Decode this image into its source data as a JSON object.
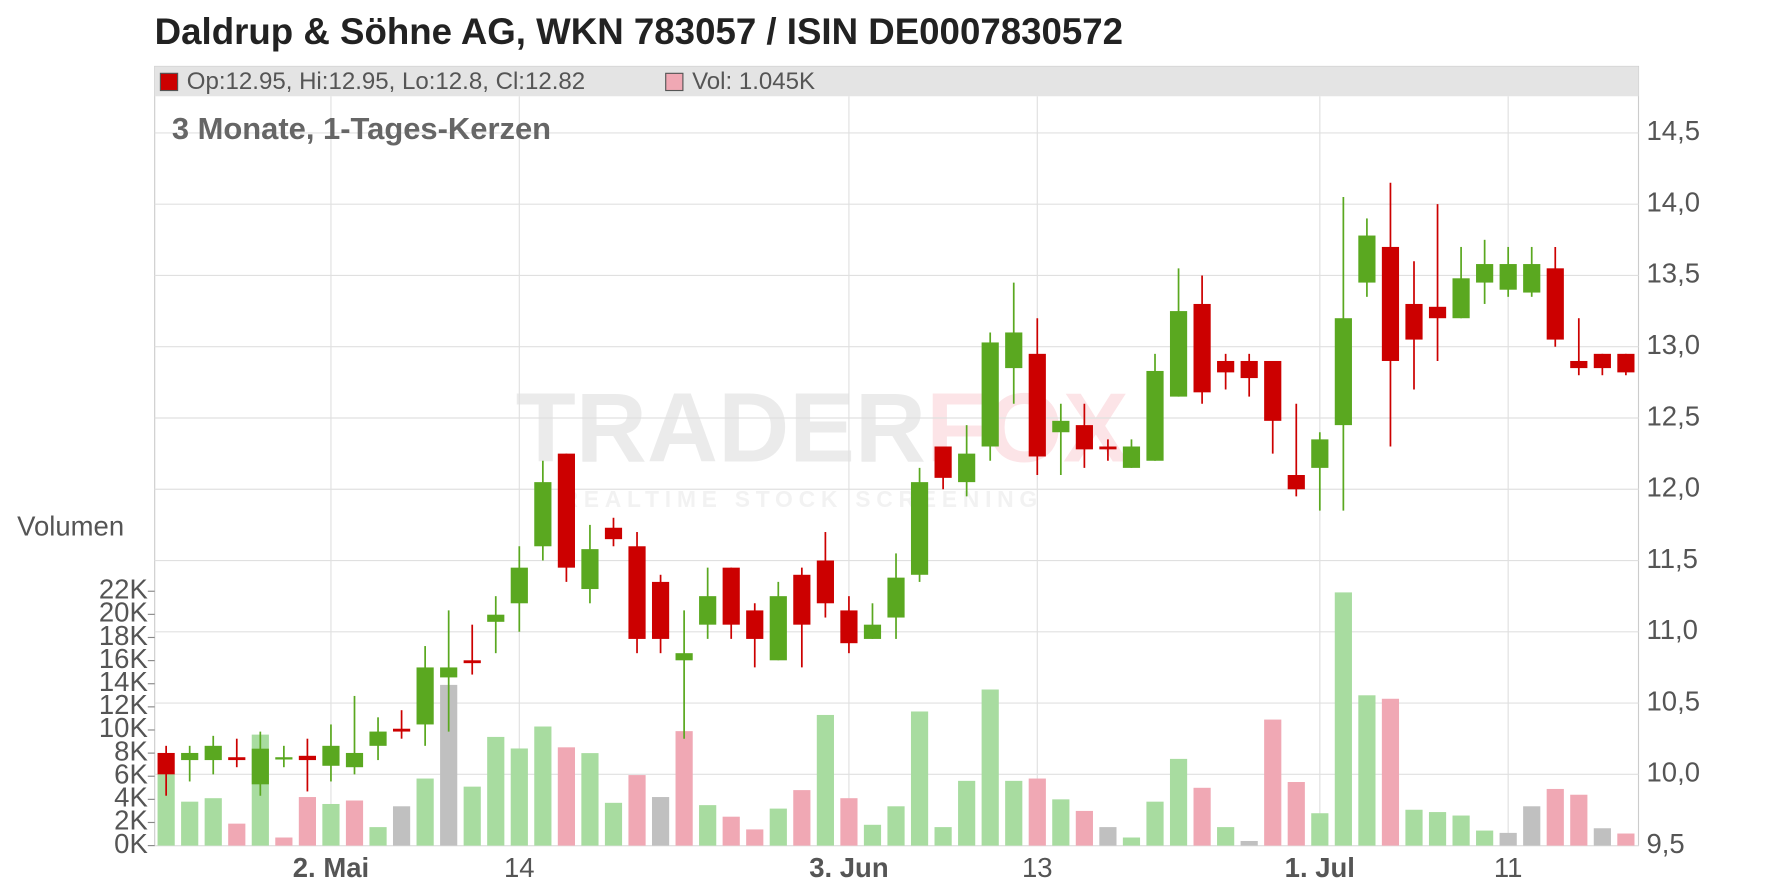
{
  "chart_data": {
    "type": "candlestick",
    "title": "Daldrup & Söhne AG, WKN 783057 / ISIN DE0007830572",
    "subtitle": "3 Monate, 1-Tages-Kerzen",
    "legend": {
      "price": "Op:12.95, Hi:12.95, Lo:12.8, Cl:12.82",
      "volume": "Vol: 1.045K"
    },
    "watermark": {
      "brand": [
        "TRADER",
        "FOX"
      ],
      "tagline": "REALTIME STOCK SCREENING"
    },
    "volume_label": "Volumen",
    "up_color": "#5aa820",
    "down_color": "#cc0000",
    "legend_price_color": "#cc0000",
    "legend_volume_color": "#f0a8b4",
    "grid": true,
    "categories": [
      null,
      null,
      null,
      null,
      null,
      null,
      null,
      "2. Mai",
      null,
      null,
      null,
      null,
      null,
      null,
      null,
      "14",
      null,
      null,
      null,
      null,
      null,
      null,
      null,
      null,
      null,
      null,
      null,
      null,
      null,
      "3. Jun",
      null,
      null,
      null,
      null,
      null,
      null,
      null,
      "13",
      null,
      null,
      null,
      null,
      null,
      null,
      null,
      null,
      null,
      null,
      null,
      "1. Jul",
      null,
      null,
      null,
      null,
      null,
      null,
      null,
      "11",
      null,
      null,
      null,
      null,
      null
    ],
    "open": [
      10.15,
      10.1,
      10.1,
      10.12,
      9.93,
      10.11,
      10.13,
      10.06,
      10.05,
      10.2,
      10.32,
      10.35,
      10.68,
      10.8,
      11.07,
      11.2,
      11.6,
      12.25,
      11.3,
      11.73,
      11.6,
      11.35,
      10.8,
      11.05,
      11.45,
      11.15,
      10.8,
      11.4,
      11.5,
      11.15,
      10.95,
      11.1,
      11.4,
      12.3,
      12.05,
      12.3,
      12.85,
      12.95,
      12.4,
      12.45,
      12.3,
      12.15,
      12.2,
      12.65,
      13.3,
      12.9,
      12.9,
      12.9,
      12.1,
      12.15,
      12.45,
      13.45,
      13.7,
      13.3,
      13.28,
      13.2,
      13.45,
      13.4,
      13.38,
      13.55,
      12.9,
      12.95,
      12.95
    ],
    "high": [
      10.2,
      10.2,
      10.27,
      10.25,
      10.3,
      10.2,
      10.25,
      10.35,
      10.55,
      10.4,
      10.45,
      10.9,
      11.15,
      11.05,
      11.25,
      11.6,
      12.2,
      12.25,
      11.75,
      11.8,
      11.7,
      11.4,
      11.15,
      11.45,
      11.45,
      11.2,
      11.35,
      11.45,
      11.7,
      11.25,
      11.2,
      11.55,
      12.15,
      12.3,
      12.45,
      13.1,
      13.45,
      13.2,
      12.6,
      12.6,
      12.35,
      12.35,
      12.95,
      13.55,
      13.5,
      12.95,
      12.95,
      12.9,
      12.6,
      12.4,
      14.05,
      13.9,
      14.15,
      13.6,
      14.0,
      13.7,
      13.75,
      13.7,
      13.7,
      13.7,
      13.2,
      12.95,
      12.95
    ],
    "low": [
      9.85,
      9.95,
      10.0,
      10.05,
      9.85,
      10.05,
      9.88,
      9.95,
      10.0,
      10.1,
      10.25,
      10.2,
      10.3,
      10.7,
      10.85,
      11.0,
      11.5,
      11.35,
      11.2,
      11.6,
      10.85,
      10.85,
      10.25,
      10.95,
      10.95,
      10.75,
      10.8,
      10.75,
      11.1,
      10.85,
      10.95,
      10.95,
      11.35,
      12.0,
      11.95,
      12.2,
      12.6,
      12.1,
      12.1,
      12.15,
      12.2,
      12.15,
      12.2,
      12.65,
      12.6,
      12.7,
      12.65,
      12.25,
      11.95,
      11.85,
      11.85,
      13.35,
      12.3,
      12.7,
      12.9,
      13.2,
      13.3,
      13.35,
      13.35,
      13.0,
      12.8,
      12.8,
      12.8
    ],
    "close": [
      10.0,
      10.15,
      10.2,
      10.1,
      10.18,
      10.12,
      10.1,
      10.2,
      10.15,
      10.3,
      10.3,
      10.75,
      10.75,
      10.78,
      11.12,
      11.45,
      12.05,
      11.45,
      11.58,
      11.65,
      10.95,
      10.95,
      10.85,
      11.25,
      11.05,
      10.95,
      11.25,
      11.05,
      11.2,
      10.92,
      11.05,
      11.38,
      12.05,
      12.08,
      12.25,
      13.03,
      13.1,
      12.23,
      12.48,
      12.28,
      12.28,
      12.3,
      12.83,
      13.25,
      12.68,
      12.82,
      12.78,
      12.48,
      12.0,
      12.35,
      13.2,
      13.78,
      12.9,
      13.05,
      13.2,
      13.48,
      13.58,
      13.58,
      13.58,
      13.05,
      12.85,
      12.85,
      12.82
    ],
    "volume": [
      6.2,
      3.8,
      4.1,
      1.9,
      9.6,
      0.7,
      4.2,
      3.6,
      3.9,
      1.6,
      3.4,
      5.8,
      13.9,
      5.1,
      9.4,
      8.4,
      10.3,
      8.5,
      8.0,
      3.7,
      6.1,
      4.2,
      9.9,
      3.5,
      2.5,
      1.4,
      3.2,
      4.8,
      11.3,
      4.1,
      1.8,
      3.4,
      11.6,
      1.6,
      5.6,
      13.5,
      5.6,
      5.8,
      4.0,
      3.0,
      1.6,
      0.7,
      3.8,
      7.5,
      5.0,
      1.6,
      0.4,
      10.9,
      5.5,
      2.8,
      21.9,
      13.0,
      12.7,
      3.1,
      2.9,
      2.6,
      1.3,
      1.1,
      3.4,
      4.9,
      4.4,
      1.5,
      1.045
    ],
    "volume_colors": [
      "#a8dca0",
      "#a8dca0",
      "#a8dca0",
      "#f0a8b4",
      "#a8dca0",
      "#f0a8b4",
      "#f0a8b4",
      "#a8dca0",
      "#f0a8b4",
      "#a8dca0",
      "#c0c0c0",
      "#a8dca0",
      "#c0c0c0",
      "#a8dca0",
      "#a8dca0",
      "#a8dca0",
      "#a8dca0",
      "#f0a8b4",
      "#a8dca0",
      "#a8dca0",
      "#f0a8b4",
      "#c0c0c0",
      "#f0a8b4",
      "#a8dca0",
      "#f0a8b4",
      "#f0a8b4",
      "#a8dca0",
      "#f0a8b4",
      "#a8dca0",
      "#f0a8b4",
      "#a8dca0",
      "#a8dca0",
      "#a8dca0",
      "#a8dca0",
      "#a8dca0",
      "#a8dca0",
      "#a8dca0",
      "#f0a8b4",
      "#a8dca0",
      "#f0a8b4",
      "#c0c0c0",
      "#a8dca0",
      "#a8dca0",
      "#a8dca0",
      "#f0a8b4",
      "#a8dca0",
      "#c0c0c0",
      "#f0a8b4",
      "#f0a8b4",
      "#a8dca0",
      "#a8dca0",
      "#a8dca0",
      "#f0a8b4",
      "#a8dca0",
      "#a8dca0",
      "#a8dca0",
      "#a8dca0",
      "#c0c0c0",
      "#c0c0c0",
      "#f0a8b4",
      "#f0a8b4",
      "#c0c0c0",
      "#f0a8b4"
    ],
    "ylim": [
      9.5,
      14.5
    ],
    "yticks": [
      {
        "value": 9.5,
        "label": "9,5"
      },
      {
        "value": 10,
        "label": "10,0"
      },
      {
        "value": 10.5,
        "label": "10,5"
      },
      {
        "value": 11,
        "label": "11,0"
      },
      {
        "value": 11.5,
        "label": "11,5"
      },
      {
        "value": 12,
        "label": "12,0"
      },
      {
        "value": 12.5,
        "label": "12,5"
      },
      {
        "value": 13,
        "label": "13,0"
      },
      {
        "value": 13.5,
        "label": "13,5"
      },
      {
        "value": 14,
        "label": "14,0"
      },
      {
        "value": 14.5,
        "label": "14,5"
      }
    ],
    "y2lim": [
      0,
      22
    ],
    "y2ticks": [
      {
        "value": 0,
        "label": "0K"
      },
      {
        "value": 2,
        "label": "2K"
      },
      {
        "value": 4,
        "label": "4K"
      },
      {
        "value": 6,
        "label": "6K"
      },
      {
        "value": 8,
        "label": "8K"
      },
      {
        "value": 10,
        "label": "10K"
      },
      {
        "value": 12,
        "label": "12K"
      },
      {
        "value": 14,
        "label": "14K"
      },
      {
        "value": 16,
        "label": "16K"
      },
      {
        "value": 18,
        "label": "18K"
      },
      {
        "value": 20,
        "label": "20K"
      },
      {
        "value": 22,
        "label": "22K"
      }
    ]
  }
}
